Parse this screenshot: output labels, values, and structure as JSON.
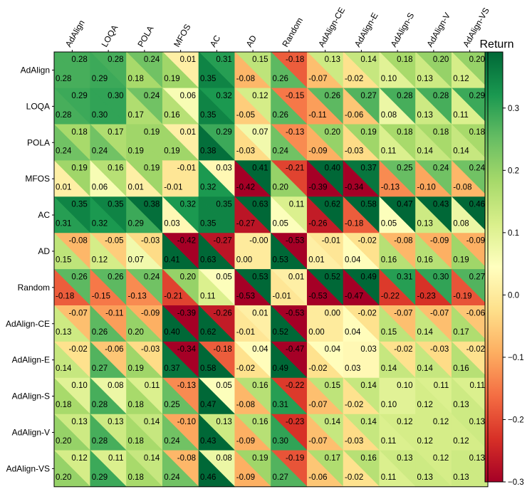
{
  "chart_data": {
    "type": "heatmap",
    "title": "",
    "colorbar_label": "Return",
    "colorbar_ticks": [
      "0.3",
      "0.2",
      "0.1",
      "0.0",
      "−0.1",
      "−0.2",
      "−0.3"
    ],
    "colorbar_tick_values": [
      0.3,
      0.2,
      0.1,
      0.0,
      -0.1,
      -0.2,
      -0.3
    ],
    "colorbar_range": [
      -0.3,
      0.39
    ],
    "row_labels": [
      "AdAlign",
      "LOQA",
      "POLA",
      "MFOS",
      "AC",
      "AD",
      "Random",
      "AdAlign-CE",
      "AdAlign-E",
      "AdAlign-S",
      "AdAlign-V",
      "AdAlign-VS"
    ],
    "col_labels": [
      "AdAlign",
      "LOQA",
      "POLA",
      "MFOS",
      "AC",
      "AD",
      "Random",
      "AdAlign-CE",
      "AdAlign-E",
      "AdAlign-S",
      "AdAlign-V",
      "AdAlign-VS"
    ],
    "note": "Each cell is split diagonally: upper-right triangle value shown at top-right, lower-left triangle value shown at bottom-left.",
    "upper_values": [
      [
        0.28,
        0.28,
        0.24,
        0.01,
        0.31,
        0.15,
        -0.18,
        0.13,
        0.14,
        0.18,
        0.2,
        0.2
      ],
      [
        0.29,
        0.3,
        0.24,
        0.06,
        0.32,
        0.12,
        -0.15,
        0.26,
        0.27,
        0.28,
        0.28,
        0.29
      ],
      [
        0.18,
        0.17,
        0.19,
        0.01,
        0.29,
        0.07,
        -0.13,
        0.2,
        0.19,
        0.18,
        0.18,
        0.18
      ],
      [
        0.19,
        0.16,
        0.19,
        -0.01,
        0.03,
        0.41,
        -0.21,
        0.4,
        0.37,
        0.25,
        0.24,
        0.24
      ],
      [
        0.35,
        0.35,
        0.38,
        0.32,
        0.35,
        0.63,
        0.11,
        0.62,
        0.58,
        0.47,
        0.43,
        0.46
      ],
      [
        -0.08,
        -0.05,
        -0.03,
        -0.42,
        -0.27,
        -0.0,
        -0.53,
        -0.01,
        -0.02,
        -0.08,
        -0.09,
        -0.09
      ],
      [
        0.26,
        0.26,
        0.24,
        0.2,
        0.05,
        0.53,
        0.01,
        0.52,
        0.49,
        0.31,
        0.3,
        0.27
      ],
      [
        -0.07,
        -0.11,
        -0.09,
        -0.39,
        -0.26,
        0.01,
        -0.53,
        0.0,
        -0.02,
        -0.07,
        -0.07,
        -0.06
      ],
      [
        -0.02,
        -0.06,
        -0.03,
        -0.34,
        -0.18,
        0.04,
        -0.47,
        0.04,
        0.03,
        -0.02,
        -0.03,
        -0.02
      ],
      [
        0.1,
        0.08,
        0.11,
        -0.13,
        0.05,
        0.16,
        -0.22,
        0.15,
        0.14,
        0.1,
        0.11,
        0.11
      ],
      [
        0.13,
        0.13,
        0.14,
        -0.1,
        0.13,
        0.16,
        -0.23,
        0.14,
        0.14,
        0.12,
        0.12,
        0.13
      ],
      [
        0.12,
        0.11,
        0.14,
        -0.08,
        0.08,
        0.19,
        -0.19,
        0.17,
        0.16,
        0.13,
        0.12,
        0.13
      ]
    ],
    "upper_labels": [
      [
        "0.28",
        "0.28",
        "0.24",
        "0.01",
        "0.31",
        "0.15",
        "-0.18",
        "0.13",
        "0.14",
        "0.18",
        "0.20",
        "0.20"
      ],
      [
        "0.29",
        "0.30",
        "0.24",
        "0.06",
        "0.32",
        "0.12",
        "-0.15",
        "0.26",
        "0.27",
        "0.28",
        "0.28",
        "0.29"
      ],
      [
        "0.18",
        "0.17",
        "0.19",
        "0.01",
        "0.29",
        "0.07",
        "-0.13",
        "0.20",
        "0.19",
        "0.18",
        "0.18",
        "0.18"
      ],
      [
        "0.19",
        "0.16",
        "0.19",
        "-0.01",
        "0.03",
        "0.41",
        "-0.21",
        "0.40",
        "0.37",
        "0.25",
        "0.24",
        "0.24"
      ],
      [
        "0.35",
        "0.35",
        "0.38",
        "0.32",
        "0.35",
        "0.63",
        "0.11",
        "0.62",
        "0.58",
        "0.47",
        "0.43",
        "0.46"
      ],
      [
        "-0.08",
        "-0.05",
        "-0.03",
        "-0.42",
        "-0.27",
        "-0.00",
        "-0.53",
        "-0.01",
        "-0.02",
        "-0.08",
        "-0.09",
        "-0.09"
      ],
      [
        "0.26",
        "0.26",
        "0.24",
        "0.20",
        "0.05",
        "0.53",
        "0.01",
        "0.52",
        "0.49",
        "0.31",
        "0.30",
        "0.27"
      ],
      [
        "-0.07",
        "-0.11",
        "-0.09",
        "-0.39",
        "-0.26",
        "0.01",
        "-0.53",
        "0.00",
        "-0.02",
        "-0.07",
        "-0.07",
        "-0.06"
      ],
      [
        "-0.02",
        "-0.06",
        "-0.03",
        "-0.34",
        "-0.18",
        "0.04",
        "-0.47",
        "0.04",
        "0.03",
        "-0.02",
        "-0.03",
        "-0.02"
      ],
      [
        "0.10",
        "0.08",
        "0.11",
        "-0.13",
        "0.05",
        "0.16",
        "-0.22",
        "0.15",
        "0.14",
        "0.10",
        "0.11",
        "0.11"
      ],
      [
        "0.13",
        "0.13",
        "0.14",
        "-0.10",
        "0.13",
        "0.16",
        "-0.23",
        "0.14",
        "0.14",
        "0.12",
        "0.12",
        "0.13"
      ],
      [
        "0.12",
        "0.11",
        "0.14",
        "-0.08",
        "0.08",
        "0.19",
        "-0.19",
        "0.17",
        "0.16",
        "0.13",
        "0.12",
        "0.13"
      ]
    ],
    "lower_values": [
      [
        0.28,
        0.29,
        0.18,
        0.19,
        0.35,
        -0.08,
        0.26,
        -0.07,
        -0.02,
        0.1,
        0.13,
        0.12
      ],
      [
        0.28,
        0.3,
        0.17,
        0.16,
        0.35,
        -0.05,
        0.26,
        -0.11,
        -0.06,
        0.08,
        0.13,
        0.11
      ],
      [
        0.24,
        0.24,
        0.19,
        0.19,
        0.38,
        -0.03,
        0.24,
        -0.09,
        -0.03,
        0.11,
        0.14,
        0.14
      ],
      [
        0.01,
        0.06,
        0.01,
        -0.01,
        0.32,
        -0.42,
        0.2,
        -0.39,
        -0.34,
        -0.13,
        -0.1,
        -0.08
      ],
      [
        0.31,
        0.32,
        0.29,
        0.03,
        0.35,
        -0.27,
        0.05,
        -0.26,
        -0.18,
        0.05,
        0.13,
        0.08
      ],
      [
        0.15,
        0.12,
        0.07,
        0.41,
        0.63,
        0.0,
        0.53,
        0.01,
        0.04,
        0.16,
        0.16,
        0.19
      ],
      [
        -0.18,
        -0.15,
        -0.13,
        -0.21,
        0.11,
        -0.53,
        -0.01,
        -0.53,
        -0.47,
        -0.22,
        -0.23,
        -0.19
      ],
      [
        0.13,
        0.26,
        0.2,
        0.4,
        0.62,
        -0.01,
        0.52,
        0.0,
        0.04,
        0.15,
        0.14,
        0.17
      ],
      [
        0.14,
        0.27,
        0.19,
        0.37,
        0.58,
        -0.02,
        0.49,
        -0.02,
        0.03,
        0.14,
        0.14,
        0.16
      ],
      [
        0.18,
        0.28,
        0.18,
        0.25,
        0.47,
        -0.08,
        0.31,
        -0.07,
        -0.02,
        0.1,
        0.12,
        0.13
      ],
      [
        0.2,
        0.28,
        0.18,
        0.24,
        0.43,
        -0.09,
        0.3,
        -0.07,
        -0.03,
        0.11,
        0.12,
        0.12
      ],
      [
        0.2,
        0.29,
        0.18,
        0.24,
        0.46,
        -0.09,
        0.27,
        -0.06,
        -0.02,
        0.11,
        0.13,
        0.13
      ]
    ],
    "lower_labels": [
      [
        "0.28",
        "0.29",
        "0.18",
        "0.19",
        "0.35",
        "-0.08",
        "0.26",
        "-0.07",
        "-0.02",
        "0.10",
        "0.13",
        "0.12"
      ],
      [
        "0.28",
        "0.30",
        "0.17",
        "0.16",
        "0.35",
        "-0.05",
        "0.26",
        "-0.11",
        "-0.06",
        "0.08",
        "0.13",
        "0.11"
      ],
      [
        "0.24",
        "0.24",
        "0.19",
        "0.19",
        "0.38",
        "-0.03",
        "0.24",
        "-0.09",
        "-0.03",
        "0.11",
        "0.14",
        "0.14"
      ],
      [
        "0.01",
        "0.06",
        "0.01",
        "-0.01",
        "0.32",
        "-0.42",
        "0.20",
        "-0.39",
        "-0.34",
        "-0.13",
        "-0.10",
        "-0.08"
      ],
      [
        "0.31",
        "0.32",
        "0.29",
        "0.03",
        "0.35",
        "-0.27",
        "0.05",
        "-0.26",
        "-0.18",
        "0.05",
        "0.13",
        "0.08"
      ],
      [
        "0.15",
        "0.12",
        "0.07",
        "0.41",
        "0.63",
        "0.00",
        "0.53",
        "0.01",
        "0.04",
        "0.16",
        "0.16",
        "0.19"
      ],
      [
        "-0.18",
        "-0.15",
        "-0.13",
        "-0.21",
        "0.11",
        "-0.53",
        "-0.01",
        "-0.53",
        "-0.47",
        "-0.22",
        "-0.23",
        "-0.19"
      ],
      [
        "0.13",
        "0.26",
        "0.20",
        "0.40",
        "0.62",
        "-0.01",
        "0.52",
        "0.00",
        "0.04",
        "0.15",
        "0.14",
        "0.17"
      ],
      [
        "0.14",
        "0.27",
        "0.19",
        "0.37",
        "0.58",
        "-0.02",
        "0.49",
        "-0.02",
        "0.03",
        "0.14",
        "0.14",
        "0.16"
      ],
      [
        "0.18",
        "0.28",
        "0.18",
        "0.25",
        "0.47",
        "-0.08",
        "0.31",
        "-0.07",
        "-0.02",
        "0.10",
        "0.12",
        "0.13"
      ],
      [
        "0.20",
        "0.28",
        "0.18",
        "0.24",
        "0.43",
        "-0.09",
        "0.30",
        "-0.07",
        "-0.03",
        "0.11",
        "0.12",
        "0.12"
      ],
      [
        "0.20",
        "0.29",
        "0.18",
        "0.24",
        "0.46",
        "-0.09",
        "0.27",
        "-0.06",
        "-0.02",
        "0.11",
        "0.13",
        "0.13"
      ]
    ],
    "colormap": [
      "#a50026",
      "#d73027",
      "#f46d43",
      "#fdae61",
      "#fee08b",
      "#ffffbf",
      "#d9ef8b",
      "#a6d96a",
      "#66bd63",
      "#1a9850",
      "#006837"
    ]
  }
}
